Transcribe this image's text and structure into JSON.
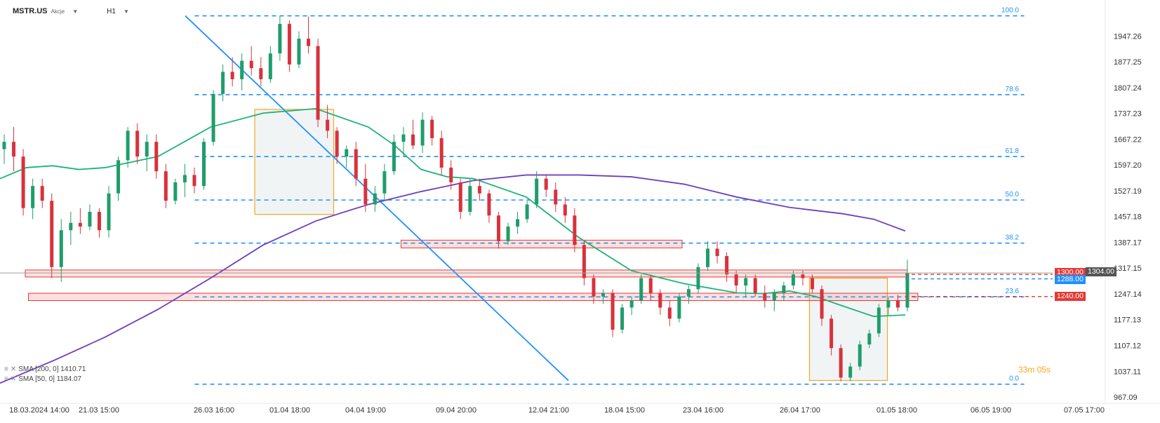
{
  "header": {
    "symbol": "MSTR.US",
    "kind": "Akcje",
    "timeframe": "H1"
  },
  "countdown": {
    "minutes": "33",
    "m": "m",
    "seconds": "05",
    "s": "s"
  },
  "legend": [
    {
      "label": "SMA [200, 0] 1410.71",
      "color": "#6c3fbf"
    },
    {
      "label": "SMA [50, 0] 1184.07",
      "color": "#1db37a"
    }
  ],
  "chart_data": {
    "type": "candlestick",
    "y_axis": {
      "range": [
        950,
        2045
      ],
      "ticks": [
        1947.26,
        1877.25,
        1807.24,
        1737.23,
        1667.22,
        1597.2,
        1527.19,
        1457.18,
        1387.17,
        1317.15,
        1247.14,
        1177.13,
        1107.12,
        1037.11,
        967.09
      ]
    },
    "x_axis": {
      "ticks": [
        "18.03.2024  14:00",
        "21.03  15:00",
        "26.03  16:00",
        "01.04  18:00",
        "04.04  19:00",
        "09.04  20:00",
        "12.04  21:00",
        "18.04  15:00",
        "23.04  16:00",
        "26.04  17:00",
        "01.05  18:00",
        "06.05  19:00",
        "07.05  17:00"
      ]
    },
    "fibonacci": {
      "color": "#1e90ff",
      "levels": [
        {
          "label": "100.0",
          "price": 2002
        },
        {
          "label": "78.6",
          "price": 1788
        },
        {
          "label": "61.8",
          "price": 1620
        },
        {
          "label": "50.0",
          "price": 1502
        },
        {
          "label": "38.2",
          "price": 1385
        },
        {
          "label": "23.6",
          "price": 1239
        },
        {
          "label": "0.0",
          "price": 1002
        }
      ]
    },
    "price_lines": [
      {
        "label": "1300.00",
        "price": 1300,
        "color": "#e53935"
      },
      {
        "label": "1288.00",
        "price": 1288,
        "color": "#1e90ff"
      },
      {
        "label": "1304.00",
        "price": 1304,
        "color": "#555555"
      },
      {
        "label": "1240.00",
        "price": 1240,
        "color": "#e53935"
      }
    ],
    "zones": [
      {
        "name": "resistance-zone-1300",
        "x": [
          0.024,
          0.862
        ],
        "y": [
          1293,
          1312
        ]
      },
      {
        "name": "support-zone-1240",
        "x": [
          0.027,
          0.872
        ],
        "y": [
          1229,
          1249
        ]
      },
      {
        "name": "resistance-zone-1387",
        "x": [
          0.381,
          0.648
        ],
        "y": [
          1372,
          1393
        ]
      }
    ],
    "boxes": [
      {
        "name": "consolidation-box-1",
        "x": [
          0.242,
          0.317
        ],
        "y": [
          1463,
          1748
        ]
      },
      {
        "name": "consolidation-box-2",
        "x": [
          0.769,
          0.843
        ],
        "y": [
          1012,
          1290
        ]
      }
    ],
    "trendline": {
      "from": [
        0.176,
        2002
      ],
      "to": [
        0.54,
        1012
      ]
    },
    "sma200": {
      "name": "SMA [200, 0]",
      "points": [
        [
          0.0,
          1005
        ],
        [
          0.05,
          1065
        ],
        [
          0.1,
          1130
        ],
        [
          0.15,
          1205
        ],
        [
          0.2,
          1290
        ],
        [
          0.25,
          1380
        ],
        [
          0.3,
          1445
        ],
        [
          0.35,
          1490
        ],
        [
          0.4,
          1525
        ],
        [
          0.45,
          1555
        ],
        [
          0.5,
          1570
        ],
        [
          0.55,
          1570
        ],
        [
          0.6,
          1565
        ],
        [
          0.65,
          1545
        ],
        [
          0.7,
          1510
        ],
        [
          0.75,
          1482
        ],
        [
          0.8,
          1465
        ],
        [
          0.83,
          1450
        ],
        [
          0.86,
          1418
        ]
      ]
    },
    "sma50": {
      "name": "SMA [50, 0]",
      "points": [
        [
          0.0,
          1560
        ],
        [
          0.025,
          1590
        ],
        [
          0.05,
          1595
        ],
        [
          0.075,
          1585
        ],
        [
          0.1,
          1590
        ],
        [
          0.125,
          1605
        ],
        [
          0.15,
          1620
        ],
        [
          0.2,
          1700
        ],
        [
          0.25,
          1738
        ],
        [
          0.3,
          1750
        ],
        [
          0.35,
          1700
        ],
        [
          0.375,
          1650
        ],
        [
          0.4,
          1585
        ],
        [
          0.425,
          1565
        ],
        [
          0.45,
          1560
        ],
        [
          0.5,
          1510
        ],
        [
          0.55,
          1400
        ],
        [
          0.6,
          1310
        ],
        [
          0.65,
          1275
        ],
        [
          0.7,
          1250
        ],
        [
          0.725,
          1248
        ],
        [
          0.75,
          1255
        ],
        [
          0.775,
          1240
        ],
        [
          0.8,
          1215
        ],
        [
          0.83,
          1186
        ],
        [
          0.86,
          1190
        ]
      ]
    },
    "candles": [
      [
        1640,
        1680,
        1600,
        1660
      ],
      [
        1660,
        1700,
        1580,
        1620
      ],
      [
        1620,
        1640,
        1460,
        1480
      ],
      [
        1480,
        1560,
        1450,
        1540
      ],
      [
        1540,
        1560,
        1480,
        1500
      ],
      [
        1500,
        1520,
        1290,
        1320
      ],
      [
        1320,
        1450,
        1280,
        1420
      ],
      [
        1420,
        1470,
        1380,
        1440
      ],
      [
        1440,
        1480,
        1410,
        1430
      ],
      [
        1430,
        1490,
        1420,
        1470
      ],
      [
        1470,
        1480,
        1400,
        1420
      ],
      [
        1420,
        1540,
        1400,
        1520
      ],
      [
        1520,
        1620,
        1500,
        1610
      ],
      [
        1610,
        1700,
        1590,
        1690
      ],
      [
        1690,
        1710,
        1600,
        1620
      ],
      [
        1620,
        1680,
        1580,
        1660
      ],
      [
        1660,
        1680,
        1560,
        1580
      ],
      [
        1580,
        1600,
        1480,
        1500
      ],
      [
        1500,
        1560,
        1490,
        1550
      ],
      [
        1550,
        1600,
        1510,
        1570
      ],
      [
        1570,
        1590,
        1520,
        1540
      ],
      [
        1540,
        1670,
        1530,
        1660
      ],
      [
        1660,
        1800,
        1650,
        1790
      ],
      [
        1790,
        1870,
        1770,
        1850
      ],
      [
        1850,
        1890,
        1810,
        1830
      ],
      [
        1830,
        1900,
        1800,
        1880
      ],
      [
        1880,
        1920,
        1840,
        1860
      ],
      [
        1860,
        1890,
        1810,
        1830
      ],
      [
        1830,
        1920,
        1820,
        1900
      ],
      [
        1900,
        2002,
        1880,
        1980
      ],
      [
        1980,
        1990,
        1850,
        1870
      ],
      [
        1870,
        1960,
        1860,
        1940
      ],
      [
        1940,
        2000,
        1900,
        1920
      ],
      [
        1920,
        1940,
        1700,
        1720
      ],
      [
        1720,
        1760,
        1670,
        1690
      ],
      [
        1690,
        1700,
        1600,
        1620
      ],
      [
        1620,
        1650,
        1590,
        1640
      ],
      [
        1640,
        1660,
        1540,
        1560
      ],
      [
        1560,
        1600,
        1470,
        1490
      ],
      [
        1490,
        1540,
        1470,
        1520
      ],
      [
        1520,
        1600,
        1500,
        1580
      ],
      [
        1580,
        1680,
        1570,
        1660
      ],
      [
        1660,
        1700,
        1620,
        1680
      ],
      [
        1680,
        1720,
        1640,
        1650
      ],
      [
        1650,
        1740,
        1630,
        1720
      ],
      [
        1720,
        1730,
        1650,
        1670
      ],
      [
        1670,
        1690,
        1570,
        1590
      ],
      [
        1590,
        1610,
        1530,
        1550
      ],
      [
        1550,
        1560,
        1450,
        1470
      ],
      [
        1470,
        1560,
        1460,
        1540
      ],
      [
        1540,
        1560,
        1500,
        1520
      ],
      [
        1520,
        1530,
        1440,
        1460
      ],
      [
        1460,
        1470,
        1370,
        1390
      ],
      [
        1390,
        1440,
        1380,
        1430
      ],
      [
        1430,
        1470,
        1410,
        1450
      ],
      [
        1450,
        1500,
        1440,
        1490
      ],
      [
        1490,
        1580,
        1480,
        1560
      ],
      [
        1560,
        1570,
        1510,
        1530
      ],
      [
        1530,
        1550,
        1470,
        1490
      ],
      [
        1490,
        1510,
        1440,
        1460
      ],
      [
        1460,
        1480,
        1360,
        1380
      ],
      [
        1380,
        1390,
        1270,
        1290
      ],
      [
        1290,
        1300,
        1220,
        1240
      ],
      [
        1240,
        1260,
        1220,
        1250
      ],
      [
        1250,
        1260,
        1130,
        1150
      ],
      [
        1150,
        1220,
        1140,
        1210
      ],
      [
        1210,
        1240,
        1190,
        1230
      ],
      [
        1230,
        1300,
        1220,
        1290
      ],
      [
        1290,
        1300,
        1230,
        1250
      ],
      [
        1250,
        1260,
        1190,
        1210
      ],
      [
        1210,
        1230,
        1160,
        1180
      ],
      [
        1180,
        1250,
        1170,
        1240
      ],
      [
        1240,
        1270,
        1220,
        1260
      ],
      [
        1260,
        1330,
        1250,
        1320
      ],
      [
        1320,
        1390,
        1310,
        1370
      ],
      [
        1370,
        1390,
        1330,
        1350
      ],
      [
        1350,
        1360,
        1280,
        1300
      ],
      [
        1300,
        1310,
        1250,
        1270
      ],
      [
        1270,
        1300,
        1240,
        1290
      ],
      [
        1290,
        1300,
        1240,
        1250
      ],
      [
        1250,
        1270,
        1210,
        1230
      ],
      [
        1230,
        1260,
        1200,
        1250
      ],
      [
        1250,
        1280,
        1230,
        1270
      ],
      [
        1270,
        1310,
        1260,
        1300
      ],
      [
        1300,
        1310,
        1270,
        1290
      ],
      [
        1290,
        1300,
        1250,
        1260
      ],
      [
        1260,
        1270,
        1160,
        1180
      ],
      [
        1180,
        1190,
        1080,
        1100
      ],
      [
        1100,
        1110,
        1010,
        1020
      ],
      [
        1020,
        1060,
        1010,
        1050
      ],
      [
        1050,
        1120,
        1040,
        1110
      ],
      [
        1110,
        1150,
        1100,
        1140
      ],
      [
        1140,
        1220,
        1130,
        1210
      ],
      [
        1210,
        1240,
        1190,
        1230
      ],
      [
        1230,
        1245,
        1200,
        1210
      ],
      [
        1210,
        1340,
        1200,
        1304
      ]
    ]
  }
}
